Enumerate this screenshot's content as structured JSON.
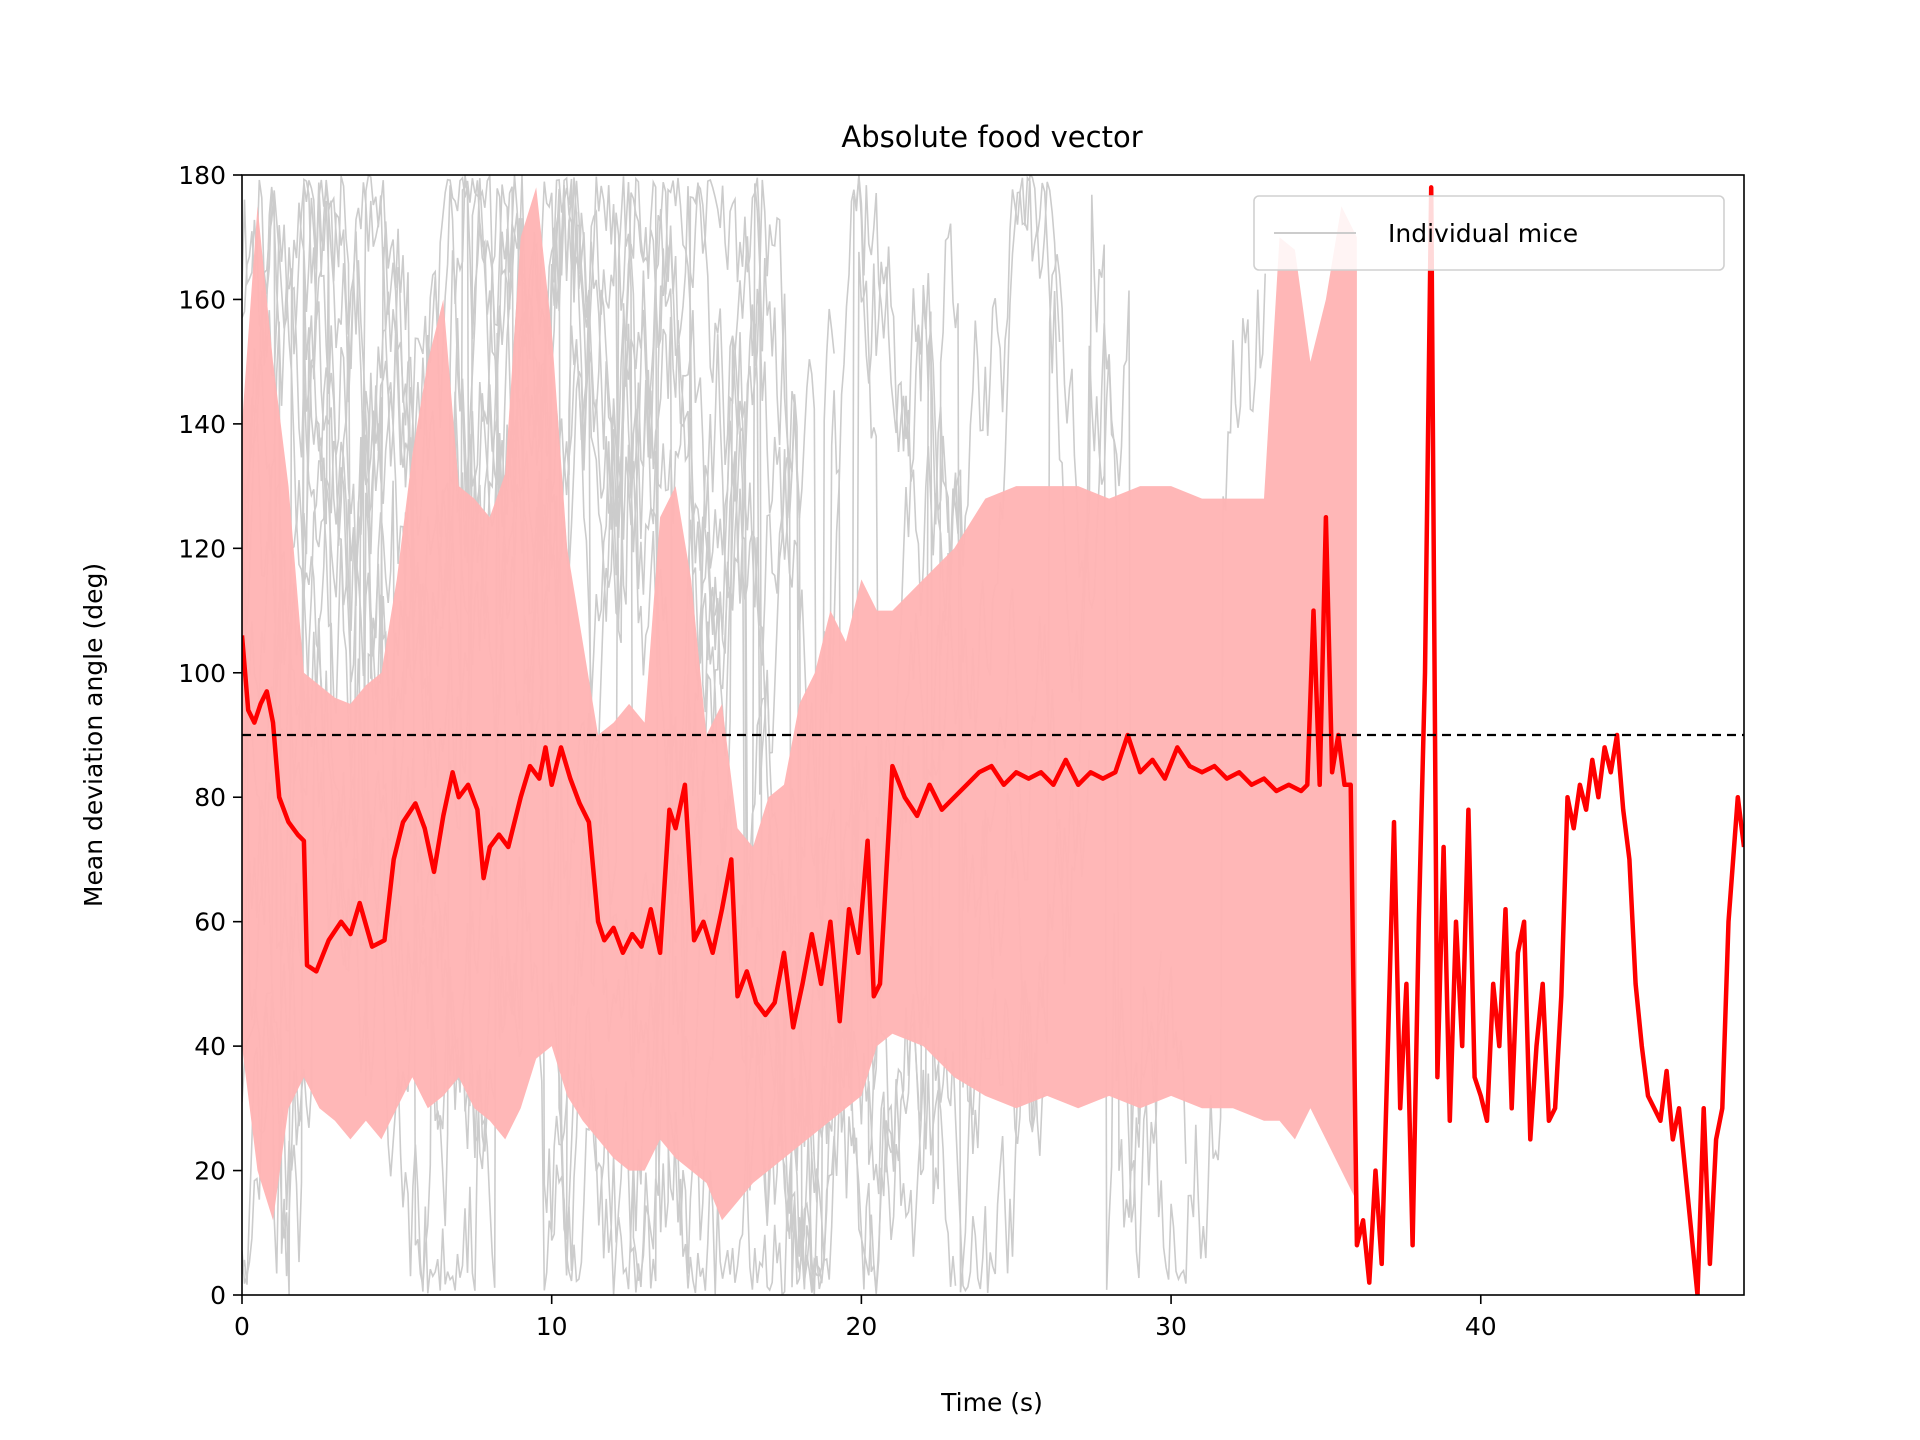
{
  "chart_data": {
    "type": "line",
    "title": "Absolute food vector",
    "xlabel": "Time (s)",
    "ylabel": "Mean deviation angle (deg)",
    "xlim": [
      0,
      48.5
    ],
    "ylim": [
      0,
      180
    ],
    "xticks": [
      0,
      10,
      20,
      30,
      40
    ],
    "yticks": [
      0,
      20,
      40,
      60,
      80,
      100,
      120,
      140,
      160,
      180
    ],
    "grid": false,
    "legend": {
      "placement": "top-right",
      "entries": [
        "Individual mice"
      ]
    },
    "reference_line": {
      "y": 90,
      "style": "dashed",
      "color": "#000000"
    },
    "colors": {
      "mean": "#ff0000",
      "band": "#ffb3b3",
      "individual": "#cccccc"
    },
    "mean_series": {
      "x": [
        0,
        0.2,
        0.4,
        0.6,
        0.8,
        1.0,
        1.2,
        1.5,
        1.8,
        2.0,
        2.1,
        2.4,
        2.8,
        3.2,
        3.5,
        3.8,
        4.2,
        4.6,
        4.9,
        5.2,
        5.6,
        5.9,
        6.2,
        6.5,
        6.8,
        7.0,
        7.3,
        7.6,
        7.8,
        8.0,
        8.3,
        8.6,
        9.0,
        9.3,
        9.6,
        9.8,
        10.0,
        10.3,
        10.6,
        10.9,
        11.2,
        11.5,
        11.7,
        12.0,
        12.3,
        12.6,
        12.9,
        13.2,
        13.5,
        13.8,
        14.0,
        14.3,
        14.6,
        14.9,
        15.2,
        15.5,
        15.8,
        16.0,
        16.3,
        16.6,
        16.9,
        17.2,
        17.5,
        17.8,
        18.1,
        18.4,
        18.7,
        19.0,
        19.3,
        19.6,
        19.9,
        20.2,
        20.4,
        20.6,
        21.0,
        21.4,
        21.8,
        22.2,
        22.6,
        23.0,
        23.4,
        23.8,
        24.2,
        24.6,
        25.0,
        25.4,
        25.8,
        26.2,
        26.6,
        27.0,
        27.4,
        27.8,
        28.2,
        28.6,
        29.0,
        29.4,
        29.8,
        30.2,
        30.6,
        31.0,
        31.4,
        31.8,
        32.2,
        32.6,
        33.0,
        33.4,
        33.8,
        34.2,
        34.4,
        34.6,
        34.8,
        35.0,
        35.2,
        35.4,
        35.6,
        35.8,
        36.0,
        36.2,
        36.4,
        36.6,
        36.8,
        37.0,
        37.2,
        37.4,
        37.6,
        37.8,
        38.0,
        38.2,
        38.4,
        38.6,
        38.8,
        39.0,
        39.2,
        39.4,
        39.6,
        39.8,
        40.0,
        40.2,
        40.4,
        40.6,
        40.8,
        41.0,
        41.2,
        41.4,
        41.6,
        41.8,
        42.0,
        42.2,
        42.4,
        42.6,
        42.8,
        43.0,
        43.2,
        43.4,
        43.6,
        43.8,
        44.0,
        44.2,
        44.4,
        44.6,
        44.8,
        45.0,
        45.2,
        45.4,
        45.6,
        45.8,
        46.0,
        46.2,
        46.4,
        46.6,
        46.8,
        47.0,
        47.2,
        47.4,
        47.6,
        47.8,
        48.0,
        48.3,
        48.5
      ],
      "y": [
        106,
        94,
        92,
        95,
        97,
        92,
        80,
        76,
        74,
        73,
        53,
        52,
        57,
        60,
        58,
        63,
        56,
        57,
        70,
        76,
        79,
        75,
        68,
        77,
        84,
        80,
        82,
        78,
        67,
        72,
        74,
        72,
        80,
        85,
        83,
        88,
        82,
        88,
        83,
        79,
        76,
        60,
        57,
        59,
        55,
        58,
        56,
        62,
        55,
        78,
        75,
        82,
        57,
        60,
        55,
        62,
        70,
        48,
        52,
        47,
        45,
        47,
        55,
        43,
        50,
        58,
        50,
        60,
        44,
        62,
        55,
        73,
        48,
        50,
        85,
        80,
        77,
        82,
        78,
        80,
        82,
        84,
        85,
        82,
        84,
        83,
        84,
        82,
        86,
        82,
        84,
        83,
        84,
        90,
        84,
        86,
        83,
        88,
        85,
        84,
        85,
        83,
        84,
        82,
        83,
        81,
        82,
        81,
        82,
        110,
        82,
        125,
        84,
        90,
        82,
        82,
        8,
        12,
        2,
        20,
        5,
        40,
        76,
        30,
        50,
        8,
        60,
        100,
        178,
        35,
        72,
        28,
        60,
        40,
        78,
        35,
        32,
        28,
        50,
        40,
        62,
        30,
        55,
        60,
        25,
        40,
        50,
        28,
        30,
        48,
        80,
        75,
        82,
        78,
        86,
        80,
        88,
        84,
        90,
        78,
        70,
        50,
        40,
        32,
        30,
        28,
        36,
        25,
        30,
        20,
        10,
        0,
        30,
        5,
        25,
        30,
        60,
        80,
        72
      ]
    },
    "band": {
      "x": [
        0,
        0.5,
        1.0,
        1.5,
        2.0,
        2.5,
        3.0,
        3.5,
        4.0,
        4.5,
        5.0,
        5.5,
        6.0,
        6.5,
        7.0,
        7.5,
        8.0,
        8.5,
        9.0,
        9.5,
        10.0,
        10.5,
        11.0,
        11.5,
        12.0,
        12.5,
        13.0,
        13.5,
        14.0,
        14.5,
        15.0,
        15.5,
        16.0,
        16.5,
        17.0,
        17.5,
        18.0,
        18.5,
        19.0,
        19.5,
        20.0,
        20.5,
        21.0,
        22.0,
        23.0,
        24.0,
        25.0,
        26.0,
        27.0,
        28.0,
        29.0,
        30.0,
        31.0,
        32.0,
        33.0,
        33.5,
        34.0,
        34.5,
        35.0,
        35.5,
        36.0
      ],
      "lower": [
        40,
        20,
        12,
        30,
        35,
        30,
        28,
        25,
        28,
        25,
        30,
        35,
        30,
        32,
        35,
        30,
        28,
        25,
        30,
        38,
        40,
        32,
        28,
        25,
        22,
        20,
        20,
        25,
        22,
        20,
        18,
        12,
        15,
        18,
        20,
        22,
        24,
        26,
        28,
        30,
        32,
        40,
        42,
        40,
        35,
        32,
        30,
        32,
        30,
        32,
        30,
        32,
        30,
        30,
        28,
        28,
        25,
        30,
        25,
        20,
        15
      ],
      "upper": [
        140,
        175,
        150,
        130,
        100,
        98,
        96,
        95,
        98,
        100,
        115,
        135,
        150,
        160,
        130,
        128,
        125,
        132,
        170,
        178,
        155,
        120,
        105,
        90,
        92,
        95,
        92,
        125,
        130,
        115,
        90,
        95,
        75,
        72,
        80,
        82,
        95,
        100,
        110,
        105,
        115,
        110,
        110,
        115,
        120,
        128,
        130,
        130,
        130,
        128,
        130,
        130,
        128,
        128,
        128,
        170,
        168,
        150,
        160,
        175,
        170
      ]
    },
    "individual_mice_traces": 13
  }
}
